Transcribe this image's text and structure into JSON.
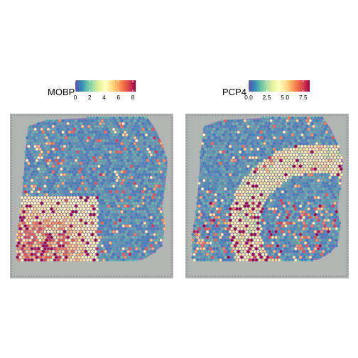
{
  "chart_data": [
    {
      "type": "heatmap",
      "subtype": "spatial spot map over tissue image",
      "legend_title": "MOBP",
      "colormap": [
        "#5E4FA2",
        "#3288BD",
        "#66C2A5",
        "#ABDDA4",
        "#E6F598",
        "#FFFFBF",
        "#FEE08B",
        "#FDAE61",
        "#F46D43",
        "#D53E4F",
        "#9E0142"
      ],
      "range": [
        0,
        8.4
      ],
      "ticks": [
        0,
        2,
        4,
        6,
        8
      ],
      "tick_labels": [
        "0",
        "2",
        "4",
        "6",
        "8"
      ],
      "pattern": "high expression concentrated in the lower-left region of the section, low (purple) elsewhere"
    },
    {
      "type": "heatmap",
      "subtype": "spatial spot map over tissue image",
      "legend_title": "PCP4",
      "colormap": [
        "#5E4FA2",
        "#3288BD",
        "#66C2A5",
        "#ABDDA4",
        "#E6F598",
        "#FFFFBF",
        "#FEE08B",
        "#FDAE61",
        "#F46D43",
        "#D53E4F",
        "#9E0142"
      ],
      "range": [
        0,
        8.4
      ],
      "ticks": [
        0,
        2.5,
        5,
        7.5
      ],
      "tick_labels": [
        "0.0",
        "2.5",
        "5.0",
        "7.5"
      ],
      "pattern": "moderate expression along a diagonal arc band and scattered bright spots in the lower region"
    }
  ],
  "colors": {
    "background": "#B2B6B3",
    "tissue": "#8C6BB1",
    "dot_border": "#9A9CA0"
  }
}
